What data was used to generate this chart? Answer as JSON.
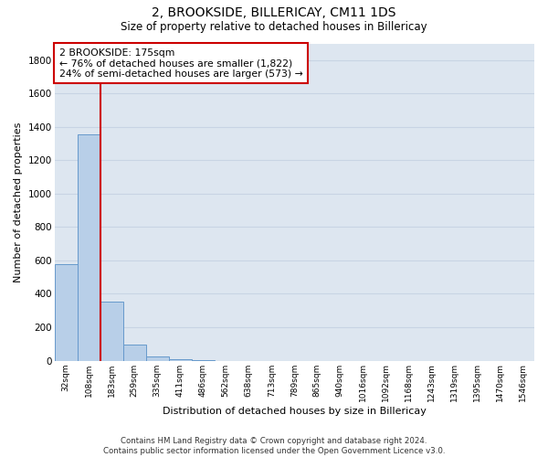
{
  "title1": "2, BROOKSIDE, BILLERICAY, CM11 1DS",
  "title2": "Size of property relative to detached houses in Billericay",
  "xlabel": "Distribution of detached houses by size in Billericay",
  "ylabel": "Number of detached properties",
  "bar_labels": [
    "32sqm",
    "108sqm",
    "183sqm",
    "259sqm",
    "335sqm",
    "411sqm",
    "486sqm",
    "562sqm",
    "638sqm",
    "713sqm",
    "789sqm",
    "865sqm",
    "940sqm",
    "1016sqm",
    "1092sqm",
    "1168sqm",
    "1243sqm",
    "1319sqm",
    "1395sqm",
    "1470sqm",
    "1546sqm"
  ],
  "bar_values": [
    580,
    1355,
    355,
    95,
    25,
    10,
    5,
    0,
    0,
    0,
    0,
    0,
    0,
    0,
    0,
    0,
    0,
    0,
    0,
    0,
    0
  ],
  "bar_color": "#b8cfe8",
  "bar_edge_color": "#6699cc",
  "vline_x": 1.5,
  "vline_color": "#cc0000",
  "annotation_text": "2 BROOKSIDE: 175sqm\n← 76% of detached houses are smaller (1,822)\n24% of semi-detached houses are larger (573) →",
  "annotation_box_color": "#ffffff",
  "annotation_box_edge": "#cc0000",
  "ylim": [
    0,
    1900
  ],
  "yticks": [
    0,
    200,
    400,
    600,
    800,
    1000,
    1200,
    1400,
    1600,
    1800
  ],
  "grid_color": "#c8d4e4",
  "bg_color": "#dde6f0",
  "footer": "Contains HM Land Registry data © Crown copyright and database right 2024.\nContains public sector information licensed under the Open Government Licence v3.0."
}
